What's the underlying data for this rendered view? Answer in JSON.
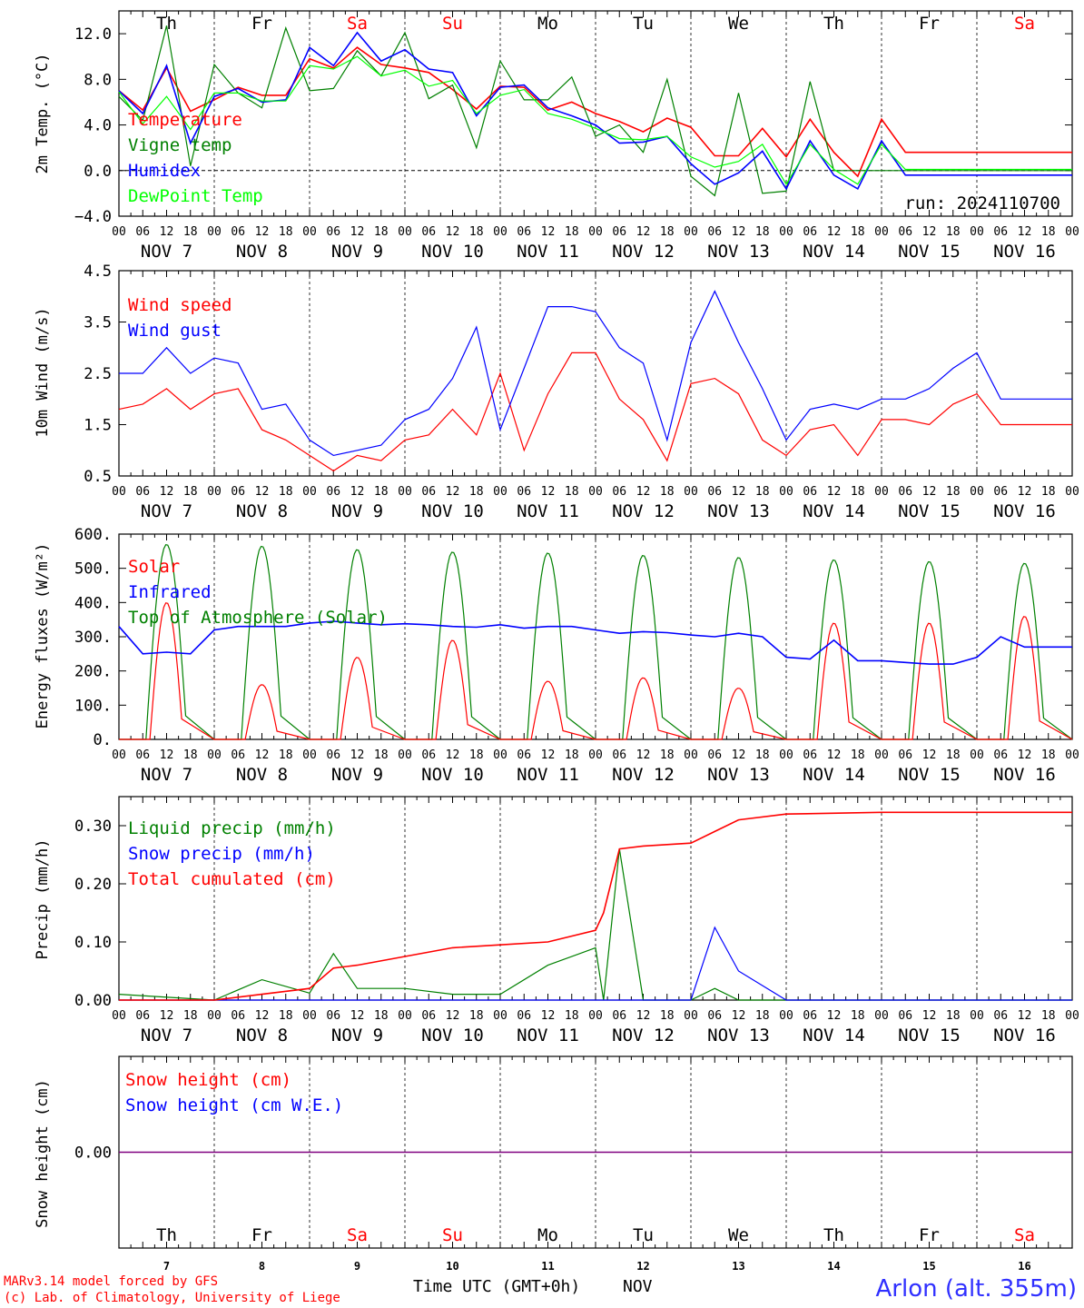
{
  "days_top": [
    "Th",
    "Fr",
    "Sa",
    "Su",
    "Mo",
    "Tu",
    "We",
    "Th",
    "Fr",
    "Sa"
  ],
  "day_colors": [
    "#000000",
    "#000000",
    "#ff0000",
    "#ff0000",
    "#000000",
    "#000000",
    "#000000",
    "#000000",
    "#000000",
    "#ff0000"
  ],
  "hour_ticks": [
    "00",
    "06",
    "12",
    "18"
  ],
  "date_labels": [
    "NOV  7",
    "NOV  8",
    "NOV  9",
    "NOV 10",
    "NOV 11",
    "NOV 12",
    "NOV 13",
    "NOV 14",
    "NOV 15",
    "NOV 16"
  ],
  "day_numbers": [
    "7",
    "8",
    "9",
    "10",
    "11",
    "12",
    "13",
    "14",
    "15",
    "16"
  ],
  "run_label": "run: 2024110700",
  "footer": {
    "credit1": "MARv3.14 model forced by GFS",
    "credit2": "(c) Lab. of Climatology, University of Liege",
    "axis_title": "Time UTC (GMT+0h)",
    "month": "NOV",
    "station": "Arlon (alt. 355m)"
  },
  "colors": {
    "red": "#ff0000",
    "green": "#008000",
    "blue": "#0000ff",
    "lime": "#00ff00",
    "purple": "#800080"
  },
  "chart_data": [
    {
      "type": "line",
      "ylabel": "2m Temp. (°C)",
      "ylim": [
        -4,
        14
      ],
      "yticks": [
        -4,
        0,
        4,
        8,
        12
      ],
      "ytick_labels": [
        "−4.0",
        "0.0",
        "4.0",
        "8.0",
        "12.0"
      ],
      "zero_dashed": true,
      "x_hours": [
        0,
        6,
        12,
        18,
        24,
        30,
        36,
        42,
        48,
        54,
        60,
        66,
        72,
        78,
        84,
        90,
        96,
        102,
        108,
        114,
        120,
        126,
        132,
        138,
        144,
        150,
        156,
        162,
        168,
        174,
        180,
        186,
        192,
        198,
        204,
        210,
        216,
        222,
        228,
        234,
        240
      ],
      "series": [
        {
          "name": "Temperature",
          "color": "#ff0000",
          "values": [
            7.0,
            5.3,
            9.0,
            5.2,
            6.2,
            7.3,
            6.6,
            6.6,
            9.8,
            9.0,
            10.8,
            9.3,
            9.0,
            8.6,
            7.1,
            5.4,
            7.4,
            7.3,
            5.3,
            6.0,
            5.0,
            4.3,
            3.4,
            4.6,
            3.8,
            1.3,
            1.3,
            3.7,
            1.2,
            4.5,
            1.6,
            -0.5,
            4.5,
            1.6,
            1.6,
            1.6,
            1.6,
            1.6,
            1.6,
            1.6,
            1.6
          ]
        },
        {
          "name": "Vigne temp",
          "color": "#008000",
          "values": [
            6.5,
            4.4,
            12.7,
            0.4,
            9.3,
            6.8,
            5.5,
            12.5,
            7.0,
            7.2,
            10.5,
            8.3,
            12.1,
            6.3,
            7.5,
            2.0,
            9.6,
            6.2,
            6.2,
            8.2,
            3.0,
            4.0,
            1.6,
            8.0,
            -0.5,
            -2.2,
            6.8,
            -2.0,
            -1.8,
            7.8,
            0.0,
            0.0,
            0.0,
            0.0,
            0.0,
            0.0,
            0.0,
            0.0,
            0.0,
            0.0,
            0.0
          ]
        },
        {
          "name": "Humidex",
          "color": "#0000ff",
          "values": [
            7.0,
            5.0,
            9.2,
            2.4,
            6.5,
            7.2,
            6.0,
            6.2,
            10.8,
            9.2,
            12.1,
            9.6,
            10.6,
            8.9,
            8.6,
            4.8,
            7.3,
            7.5,
            5.5,
            4.8,
            4.0,
            2.4,
            2.5,
            3.0,
            0.6,
            -1.2,
            -0.2,
            1.7,
            -1.6,
            2.6,
            -0.4,
            -1.6,
            2.6,
            -0.4,
            -0.4,
            -0.4,
            -0.4,
            -0.4,
            -0.4,
            -0.4,
            -0.4
          ]
        },
        {
          "name": "DewPoint Temp",
          "color": "#00ff00",
          "values": [
            6.9,
            4.1,
            6.5,
            3.6,
            6.8,
            6.8,
            6.1,
            6.1,
            9.2,
            8.9,
            10.0,
            8.3,
            8.8,
            7.4,
            7.9,
            5.0,
            6.6,
            7.1,
            5.0,
            4.5,
            3.7,
            2.8,
            2.7,
            3.0,
            1.2,
            0.3,
            0.8,
            2.3,
            -1.2,
            2.3,
            0.1,
            -1.2,
            2.3,
            0.1,
            0.1,
            0.1,
            0.1,
            0.1,
            0.1,
            0.1,
            0.1
          ]
        }
      ],
      "legend": [
        "Temperature",
        "Vigne temp",
        "Humidex",
        "DewPoint Temp"
      ]
    },
    {
      "type": "line",
      "ylabel": "10m Wind (m/s)",
      "ylim": [
        0.5,
        4.5
      ],
      "yticks": [
        0.5,
        1.5,
        2.5,
        3.5,
        4.5
      ],
      "ytick_labels": [
        "0.5",
        "1.5",
        "2.5",
        "3.5",
        "4.5"
      ],
      "x_hours": [
        0,
        6,
        12,
        18,
        24,
        30,
        36,
        42,
        48,
        54,
        60,
        66,
        72,
        78,
        84,
        90,
        96,
        102,
        108,
        114,
        120,
        126,
        132,
        138,
        144,
        150,
        156,
        162,
        168,
        174,
        180,
        186,
        192,
        198,
        204,
        210,
        216,
        222,
        228,
        234,
        240
      ],
      "series": [
        {
          "name": "Wind speed",
          "color": "#ff0000",
          "values": [
            1.8,
            1.9,
            2.2,
            1.8,
            2.1,
            2.2,
            1.4,
            1.2,
            0.9,
            0.6,
            0.9,
            0.8,
            1.2,
            1.3,
            1.8,
            1.3,
            2.5,
            1.0,
            2.1,
            2.9,
            2.9,
            2.0,
            1.6,
            0.8,
            2.3,
            2.4,
            2.1,
            1.2,
            0.9,
            1.4,
            1.5,
            0.9,
            1.6,
            1.6,
            1.5,
            1.9,
            2.1,
            1.5,
            1.5,
            1.5,
            1.5
          ]
        },
        {
          "name": "Wind gust",
          "color": "#0000ff",
          "values": [
            2.5,
            2.5,
            3.0,
            2.5,
            2.8,
            2.7,
            1.8,
            1.9,
            1.2,
            0.9,
            1.0,
            1.1,
            1.6,
            1.8,
            2.4,
            3.4,
            1.4,
            2.6,
            3.8,
            3.8,
            3.7,
            3.0,
            2.7,
            1.2,
            3.1,
            4.1,
            3.1,
            2.2,
            1.2,
            1.8,
            1.9,
            1.8,
            2.0,
            2.0,
            2.2,
            2.6,
            2.9,
            2.0,
            2.0,
            2.0,
            2.0
          ]
        }
      ],
      "legend": [
        "Wind speed",
        "Wind gust"
      ]
    },
    {
      "type": "line",
      "ylabel": "Energy fluxes (W/m²)",
      "ylim": [
        0,
        600
      ],
      "yticks": [
        0,
        100,
        200,
        300,
        400,
        500,
        600
      ],
      "ytick_labels": [
        "0.",
        "100.",
        "200.",
        "300.",
        "400.",
        "500.",
        "600."
      ],
      "x_hours": [
        0,
        6,
        12,
        18,
        24,
        30,
        36,
        42,
        48,
        54,
        60,
        66,
        72,
        78,
        84,
        90,
        96,
        102,
        108,
        114,
        120,
        126,
        132,
        138,
        144,
        150,
        156,
        162,
        168,
        174,
        180,
        186,
        192,
        198,
        204,
        210,
        216,
        222,
        228,
        234,
        240
      ],
      "series": [
        {
          "name": "Solar",
          "color": "#ff0000",
          "peaks": [
            400,
            160,
            240,
            290,
            170,
            180,
            150,
            340,
            340,
            360
          ]
        },
        {
          "name": "Infrared",
          "color": "#0000ff",
          "values": [
            330,
            250,
            255,
            250,
            320,
            330,
            330,
            330,
            340,
            345,
            340,
            335,
            338,
            335,
            330,
            328,
            335,
            325,
            330,
            330,
            320,
            310,
            315,
            312,
            305,
            300,
            310,
            300,
            240,
            235,
            290,
            230,
            230,
            225,
            220,
            220,
            240,
            300,
            270,
            270,
            270
          ]
        },
        {
          "name": "Top of Atmosphere (Solar)",
          "color": "#008000",
          "peaks": [
            570,
            565,
            555,
            548,
            545,
            538,
            532,
            525,
            520,
            515
          ]
        }
      ],
      "legend": [
        "Solar",
        "Infrared",
        "Top of Atmosphere (Solar)"
      ]
    },
    {
      "type": "line",
      "ylabel": "Precip (mm/h)",
      "ylim": [
        0,
        0.35
      ],
      "yticks": [
        0,
        0.1,
        0.2,
        0.3
      ],
      "ytick_labels": [
        "0.00",
        "0.10",
        "0.20",
        "0.30"
      ],
      "x_hours": [
        0,
        24,
        36,
        48,
        54,
        60,
        72,
        84,
        96,
        108,
        120,
        122,
        126,
        132,
        144,
        150,
        156,
        168,
        192,
        240
      ],
      "series": [
        {
          "name": "Liquid precip (mm/h)",
          "color": "#008000",
          "values": [
            0.01,
            0.0,
            0.035,
            0.012,
            0.08,
            0.02,
            0.02,
            0.01,
            0.01,
            0.06,
            0.09,
            0.0,
            0.26,
            0.0,
            0.0,
            0.02,
            0.0,
            0.0,
            0.0,
            0.0
          ]
        },
        {
          "name": "Snow precip (mm/h)",
          "color": "#0000ff",
          "values": [
            0.0,
            0.0,
            0.0,
            0.0,
            0.0,
            0.0,
            0.0,
            0.0,
            0.0,
            0.0,
            0.0,
            0.0,
            0.0,
            0.0,
            0.0,
            0.125,
            0.05,
            0.0,
            0.0,
            0.0
          ]
        },
        {
          "name": "Total cumulated (cm)",
          "color": "#ff0000",
          "values": [
            0.0,
            0.0,
            0.01,
            0.02,
            0.055,
            0.06,
            0.075,
            0.09,
            0.095,
            0.1,
            0.12,
            0.15,
            0.26,
            0.265,
            0.27,
            0.29,
            0.31,
            0.32,
            0.323,
            0.323
          ]
        }
      ],
      "legend": [
        "Liquid precip (mm/h)",
        "Snow precip (mm/h)",
        "Total cumulated (cm)"
      ]
    },
    {
      "type": "line",
      "ylabel": "Snow height (cm)",
      "ylim": [
        -1,
        1
      ],
      "yticks": [
        0
      ],
      "ytick_labels": [
        "0.00"
      ],
      "x_hours": [
        0,
        240
      ],
      "series": [
        {
          "name": "Snow height (cm)",
          "color": "#ff0000",
          "values": [
            0,
            0
          ]
        },
        {
          "name": "Snow height (cm W.E.)",
          "color": "#0000ff",
          "values": [
            0,
            0
          ]
        }
      ],
      "legend": [
        "Snow height (cm)",
        "Snow height (cm W.E.)"
      ]
    }
  ]
}
